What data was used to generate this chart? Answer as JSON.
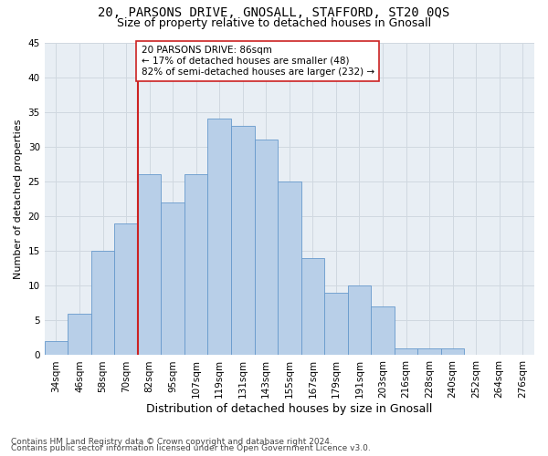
{
  "title1": "20, PARSONS DRIVE, GNOSALL, STAFFORD, ST20 0QS",
  "title2": "Size of property relative to detached houses in Gnosall",
  "xlabel": "Distribution of detached houses by size in Gnosall",
  "ylabel": "Number of detached properties",
  "bin_labels": [
    "34sqm",
    "46sqm",
    "58sqm",
    "70sqm",
    "82sqm",
    "95sqm",
    "107sqm",
    "119sqm",
    "131sqm",
    "143sqm",
    "155sqm",
    "167sqm",
    "179sqm",
    "191sqm",
    "203sqm",
    "216sqm",
    "228sqm",
    "240sqm",
    "252sqm",
    "264sqm",
    "276sqm"
  ],
  "bar_values": [
    2,
    6,
    15,
    19,
    26,
    22,
    26,
    34,
    33,
    31,
    25,
    14,
    9,
    10,
    7,
    1,
    1,
    1,
    0,
    0,
    0
  ],
  "bar_color": "#b8cfe8",
  "bar_edge_color": "#6699cc",
  "grid_color": "#d0d8e0",
  "vline_pos": 3.5,
  "vline_color": "#cc2222",
  "annotation_text": "20 PARSONS DRIVE: 86sqm\n← 17% of detached houses are smaller (48)\n82% of semi-detached houses are larger (232) →",
  "annotation_box_color": "white",
  "annotation_box_edge": "#cc2222",
  "ylim": [
    0,
    45
  ],
  "yticks": [
    0,
    5,
    10,
    15,
    20,
    25,
    30,
    35,
    40,
    45
  ],
  "footnote1": "Contains HM Land Registry data © Crown copyright and database right 2024.",
  "footnote2": "Contains public sector information licensed under the Open Government Licence v3.0.",
  "background_color": "#ffffff",
  "plot_background": "#e8eef4",
  "title1_fontsize": 10,
  "title2_fontsize": 9,
  "xlabel_fontsize": 9,
  "ylabel_fontsize": 8,
  "tick_fontsize": 7.5,
  "annot_fontsize": 7.5,
  "footnote_fontsize": 6.5
}
